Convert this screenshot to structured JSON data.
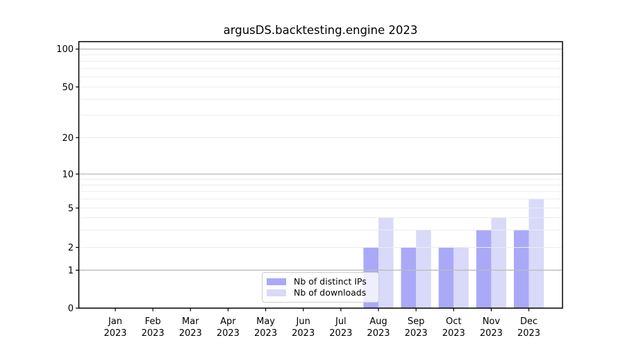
{
  "title": "argusDS.backtesting.engine 2023",
  "chart_data": {
    "type": "bar",
    "title": "argusDS.backtesting.engine 2023",
    "categories": [
      "Jan",
      "Feb",
      "Mar",
      "Apr",
      "May",
      "Jun",
      "Jul",
      "Aug",
      "Sep",
      "Oct",
      "Nov",
      "Dec"
    ],
    "x_year_label": "2023",
    "series": [
      {
        "name": "Nb of distinct IPs",
        "color": "#a9a9f8",
        "values": [
          0,
          0,
          0,
          0,
          0,
          0,
          0,
          2,
          2,
          2,
          3,
          3
        ]
      },
      {
        "name": "Nb of downloads",
        "color": "#d9d9f9",
        "values": [
          0,
          0,
          0,
          0,
          0,
          0,
          0,
          4,
          3,
          2,
          4,
          6
        ]
      }
    ],
    "xlabel": "",
    "ylabel": "",
    "yscale": "symlog-like",
    "ylim": [
      0,
      115
    ],
    "ytick_labels": [
      "0",
      "1",
      "2",
      "5",
      "10",
      "20",
      "50",
      "100"
    ],
    "ytick_values": [
      0,
      1,
      2,
      5,
      10,
      20,
      50,
      100
    ],
    "major_gridline_values": [
      1,
      10,
      100
    ],
    "minor_gridline_values": [
      2,
      3,
      4,
      5,
      6,
      7,
      8,
      9,
      20,
      30,
      40,
      50,
      60,
      70,
      80,
      90
    ],
    "grid": true,
    "legend_position": "lower center",
    "colors": {
      "major_grid": "#bcbcbc",
      "minor_grid": "#ececec",
      "spine": "#000000",
      "tick_text": "#000000",
      "legend_border": "#cccccc"
    }
  }
}
